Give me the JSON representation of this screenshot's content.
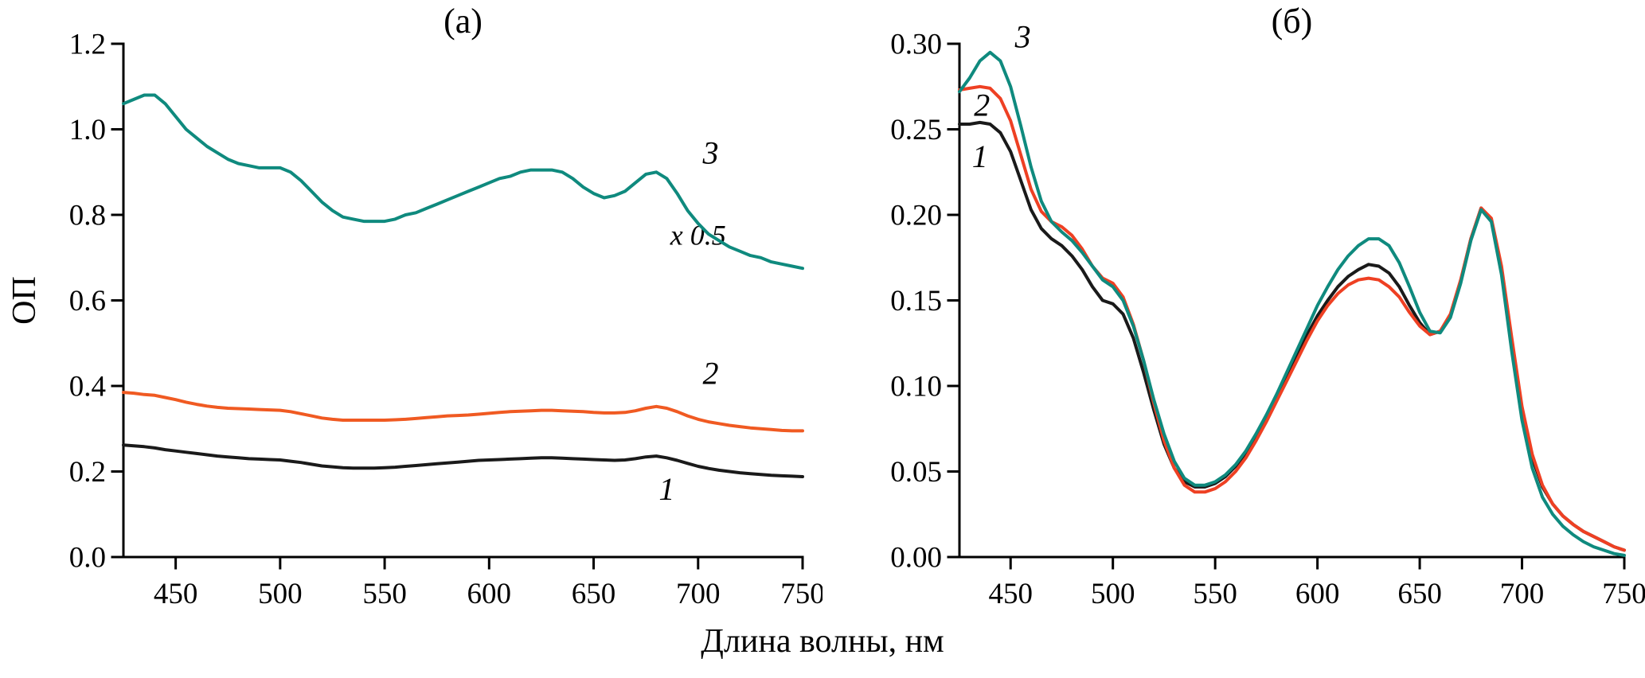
{
  "figure": {
    "xlabel": "Длина волны, нм",
    "background": "#ffffff"
  },
  "chart_data": [
    {
      "type": "line",
      "panel": "a",
      "title": "(а)",
      "ylabel": "ОП",
      "xlim": [
        425,
        750
      ],
      "ylim": [
        0,
        1.2
      ],
      "x_start": 425,
      "x_step": 5,
      "grid": false,
      "legend": "none",
      "xticks": {
        "values": [
          450,
          500,
          550,
          600,
          650,
          700,
          750
        ],
        "labels": [
          "450",
          "500",
          "550",
          "600",
          "650",
          "700",
          "750"
        ]
      },
      "yticks": {
        "values": [
          0.0,
          0.2,
          0.4,
          0.6,
          0.8,
          1.0,
          1.2
        ],
        "labels": [
          "0.0",
          "0.2",
          "0.4",
          "0.6",
          "0.8",
          "1.0",
          "1.2"
        ]
      },
      "annotations": [
        {
          "text": "3",
          "x": 706,
          "y": 0.92,
          "size": 40
        },
        {
          "text": "x 0.5",
          "x": 700,
          "y": 0.73,
          "size": 36
        },
        {
          "text": "2",
          "x": 706,
          "y": 0.405,
          "size": 40
        },
        {
          "text": "1",
          "x": 685,
          "y": 0.134,
          "size": 40
        }
      ],
      "series": [
        {
          "name": "1",
          "color": "#1a1a1a",
          "values": [
            0.262,
            0.26,
            0.258,
            0.255,
            0.251,
            0.248,
            0.245,
            0.242,
            0.239,
            0.236,
            0.234,
            0.232,
            0.23,
            0.229,
            0.228,
            0.227,
            0.224,
            0.221,
            0.217,
            0.213,
            0.211,
            0.209,
            0.208,
            0.208,
            0.208,
            0.209,
            0.21,
            0.212,
            0.214,
            0.216,
            0.218,
            0.22,
            0.222,
            0.224,
            0.226,
            0.227,
            0.228,
            0.229,
            0.23,
            0.231,
            0.232,
            0.232,
            0.231,
            0.23,
            0.229,
            0.228,
            0.227,
            0.226,
            0.227,
            0.23,
            0.234,
            0.236,
            0.232,
            0.226,
            0.219,
            0.212,
            0.207,
            0.203,
            0.2,
            0.197,
            0.195,
            0.193,
            0.191,
            0.19,
            0.189,
            0.188
          ]
        },
        {
          "name": "2",
          "color": "#f05a22",
          "values": [
            0.385,
            0.383,
            0.38,
            0.378,
            0.373,
            0.368,
            0.362,
            0.357,
            0.353,
            0.35,
            0.348,
            0.347,
            0.346,
            0.345,
            0.344,
            0.343,
            0.34,
            0.335,
            0.33,
            0.325,
            0.322,
            0.32,
            0.32,
            0.32,
            0.32,
            0.32,
            0.321,
            0.322,
            0.324,
            0.326,
            0.328,
            0.33,
            0.331,
            0.332,
            0.334,
            0.336,
            0.338,
            0.34,
            0.341,
            0.342,
            0.343,
            0.343,
            0.342,
            0.341,
            0.34,
            0.338,
            0.337,
            0.337,
            0.338,
            0.342,
            0.348,
            0.352,
            0.348,
            0.34,
            0.33,
            0.322,
            0.316,
            0.312,
            0.308,
            0.305,
            0.302,
            0.3,
            0.298,
            0.296,
            0.295,
            0.295
          ]
        },
        {
          "name": "3",
          "color": "#0f8a7e",
          "values": [
            1.06,
            1.07,
            1.08,
            1.08,
            1.06,
            1.03,
            1.0,
            0.98,
            0.96,
            0.945,
            0.93,
            0.92,
            0.915,
            0.91,
            0.91,
            0.91,
            0.9,
            0.88,
            0.855,
            0.83,
            0.81,
            0.795,
            0.79,
            0.785,
            0.785,
            0.785,
            0.79,
            0.8,
            0.805,
            0.815,
            0.825,
            0.835,
            0.845,
            0.855,
            0.865,
            0.875,
            0.885,
            0.89,
            0.9,
            0.905,
            0.905,
            0.905,
            0.9,
            0.885,
            0.865,
            0.85,
            0.84,
            0.845,
            0.855,
            0.875,
            0.895,
            0.9,
            0.885,
            0.85,
            0.81,
            0.78,
            0.755,
            0.74,
            0.725,
            0.715,
            0.705,
            0.7,
            0.69,
            0.685,
            0.68,
            0.675
          ]
        }
      ]
    },
    {
      "type": "line",
      "panel": "b",
      "title": "(б)",
      "ylabel": "",
      "xlim": [
        425,
        750
      ],
      "ylim": [
        0,
        0.3
      ],
      "x_start": 425,
      "x_step": 5,
      "grid": false,
      "legend": "none",
      "xticks": {
        "values": [
          450,
          500,
          550,
          600,
          650,
          700,
          750
        ],
        "labels": [
          "450",
          "500",
          "550",
          "600",
          "650",
          "700",
          "750"
        ]
      },
      "yticks": {
        "values": [
          0.0,
          0.05,
          0.1,
          0.15,
          0.2,
          0.25,
          0.3
        ],
        "labels": [
          "0.00",
          "0.05",
          "0.10",
          "0.15",
          "0.20",
          "0.25",
          "0.30"
        ]
      },
      "annotations": [
        {
          "text": "3",
          "x": 456,
          "y": 0.298,
          "size": 40
        },
        {
          "text": "2",
          "x": 436,
          "y": 0.258,
          "size": 40
        },
        {
          "text": "1",
          "x": 435,
          "y": 0.228,
          "size": 40
        }
      ],
      "series": [
        {
          "name": "1",
          "color": "#1a1a1a",
          "values": [
            0.253,
            0.253,
            0.254,
            0.253,
            0.248,
            0.237,
            0.22,
            0.203,
            0.192,
            0.186,
            0.182,
            0.176,
            0.168,
            0.158,
            0.15,
            0.148,
            0.142,
            0.128,
            0.108,
            0.086,
            0.066,
            0.052,
            0.044,
            0.041,
            0.041,
            0.043,
            0.047,
            0.053,
            0.061,
            0.071,
            0.082,
            0.094,
            0.106,
            0.118,
            0.13,
            0.141,
            0.15,
            0.158,
            0.164,
            0.168,
            0.171,
            0.17,
            0.166,
            0.158,
            0.147,
            0.137,
            0.13,
            0.132,
            0.141,
            0.161,
            0.186,
            0.204,
            0.197,
            0.168,
            0.125,
            0.085,
            0.058,
            0.041,
            0.031,
            0.024,
            0.019,
            0.015,
            0.012,
            0.009,
            0.006,
            0.004
          ]
        },
        {
          "name": "2",
          "color": "#ee4023",
          "values": [
            0.273,
            0.274,
            0.275,
            0.274,
            0.268,
            0.255,
            0.235,
            0.215,
            0.202,
            0.196,
            0.193,
            0.188,
            0.18,
            0.17,
            0.163,
            0.16,
            0.152,
            0.136,
            0.115,
            0.09,
            0.068,
            0.052,
            0.042,
            0.038,
            0.038,
            0.04,
            0.044,
            0.05,
            0.058,
            0.068,
            0.079,
            0.091,
            0.103,
            0.115,
            0.127,
            0.138,
            0.147,
            0.154,
            0.159,
            0.162,
            0.163,
            0.162,
            0.158,
            0.152,
            0.143,
            0.135,
            0.13,
            0.132,
            0.142,
            0.162,
            0.186,
            0.204,
            0.198,
            0.17,
            0.128,
            0.088,
            0.06,
            0.042,
            0.031,
            0.024,
            0.019,
            0.015,
            0.012,
            0.009,
            0.006,
            0.004
          ]
        },
        {
          "name": "3",
          "color": "#0f8a7e",
          "values": [
            0.272,
            0.28,
            0.29,
            0.295,
            0.29,
            0.275,
            0.252,
            0.228,
            0.208,
            0.196,
            0.19,
            0.185,
            0.178,
            0.17,
            0.162,
            0.158,
            0.15,
            0.135,
            0.115,
            0.092,
            0.072,
            0.056,
            0.046,
            0.042,
            0.042,
            0.044,
            0.048,
            0.054,
            0.062,
            0.072,
            0.083,
            0.095,
            0.108,
            0.121,
            0.134,
            0.147,
            0.158,
            0.168,
            0.176,
            0.182,
            0.186,
            0.186,
            0.182,
            0.172,
            0.158,
            0.143,
            0.132,
            0.131,
            0.14,
            0.16,
            0.185,
            0.203,
            0.196,
            0.165,
            0.12,
            0.08,
            0.052,
            0.035,
            0.025,
            0.018,
            0.013,
            0.009,
            0.006,
            0.004,
            0.002,
            0.001
          ]
        }
      ]
    }
  ]
}
